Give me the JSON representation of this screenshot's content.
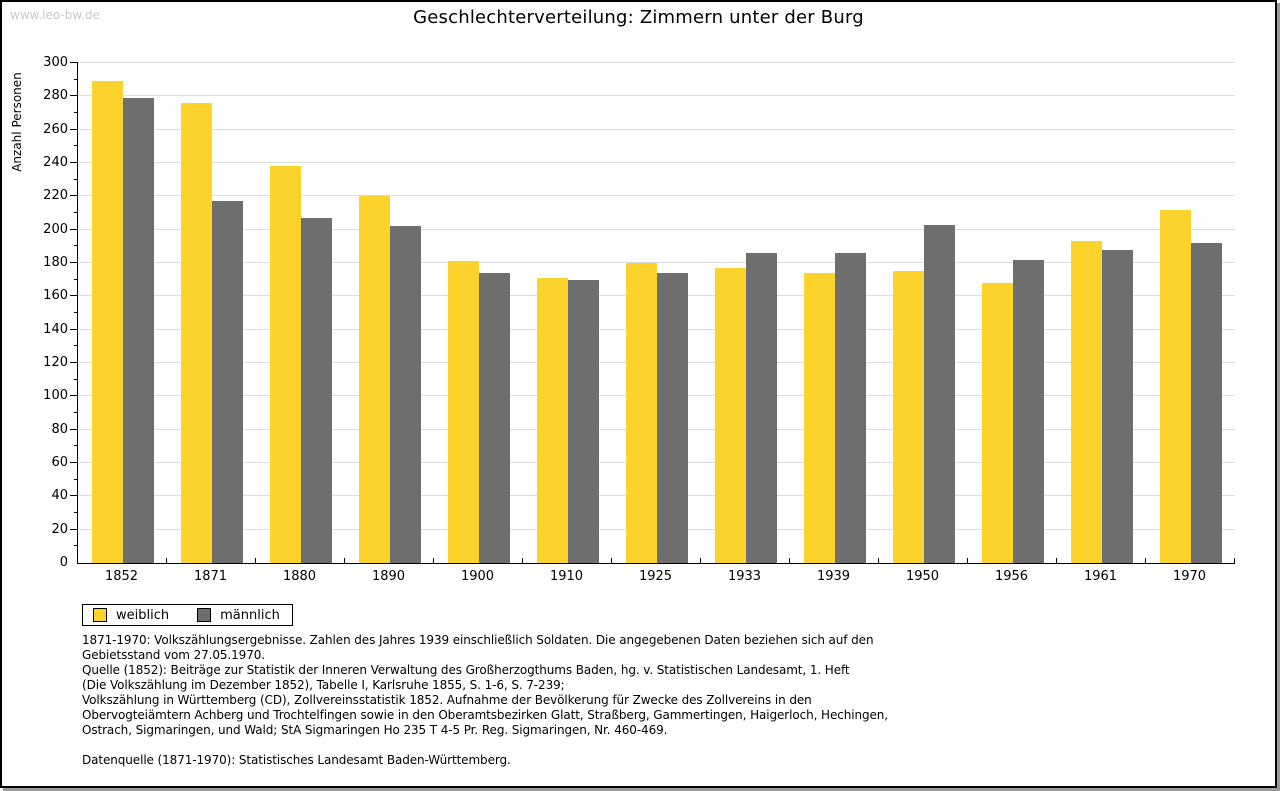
{
  "page": {
    "watermark": "www.leo-bw.de"
  },
  "chart_data": {
    "type": "bar",
    "title": "Geschlechterverteilung: Zimmern unter der Burg",
    "ylabel": "Anzahl Personen",
    "xlabel": "",
    "ylim": [
      0,
      300
    ],
    "ytick_step": 20,
    "yminor_step": 10,
    "grid": true,
    "legend_position": "bottom-left",
    "categories": [
      "1852",
      "1871",
      "1880",
      "1890",
      "1900",
      "1910",
      "1925",
      "1933",
      "1939",
      "1950",
      "1956",
      "1961",
      "1970"
    ],
    "series": [
      {
        "name": "weiblich",
        "color": "#fcd32d",
        "values": [
          289,
          276,
          238,
          220,
          181,
          171,
          180,
          177,
          174,
          175,
          168,
          193,
          212
        ]
      },
      {
        "name": "männlich",
        "color": "#6e6e6e",
        "values": [
          279,
          217,
          207,
          202,
          174,
          170,
          174,
          186,
          186,
          203,
          182,
          188,
          192
        ]
      }
    ]
  },
  "footnotes": {
    "lines": [
      "1871-1970: Volkszählungsergebnisse. Zahlen des Jahres 1939 einschließlich Soldaten. Die angegebenen Daten beziehen sich auf den",
      "Gebietsstand vom 27.05.1970.",
      "Quelle (1852): Beiträge zur Statistik der Inneren Verwaltung des Großherzogthums Baden, hg. v. Statistischen Landesamt, 1. Heft",
      "(Die Volkszählung im Dezember 1852), Tabelle I, Karlsruhe 1855, S. 1-6, S. 7-239;",
      "Volkszählung in Württemberg (CD), Zollvereinsstatistik 1852. Aufnahme der Bevölkerung für Zwecke des Zollvereins in den",
      "Obervogteiämtern Achberg und Trochtelfingen sowie in den Oberamtsbezirken Glatt, Straßberg, Gammertingen, Haigerloch, Hechingen,",
      "Ostrach, Sigmaringen, und Wald; StA Sigmaringen Ho 235 T 4-5 Pr. Reg. Sigmaringen, Nr. 460-469.",
      "",
      "Datenquelle (1871-1970): Statistisches Landesamt Baden-Württemberg."
    ]
  }
}
